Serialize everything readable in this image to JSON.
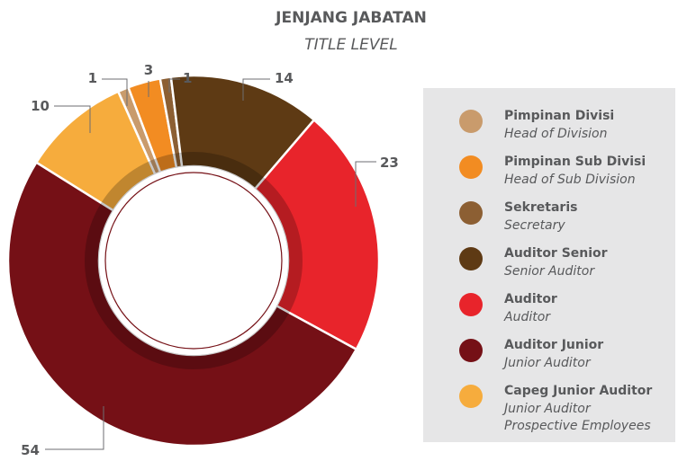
{
  "chart_data": {
    "type": "donut",
    "title": "JENJANG JABATAN",
    "subtitle": "TITLE LEVEL",
    "categories": [
      "Pimpinan Divisi",
      "Pimpinan Sub Divisi",
      "Sekretaris",
      "Auditor Senior",
      "Auditor",
      "Auditor Junior",
      "Capeg Junior Auditor"
    ],
    "category_translations": [
      [
        "Head of Division"
      ],
      [
        "Head of Sub Division"
      ],
      [
        "Secretary"
      ],
      [
        "Senior Auditor"
      ],
      [
        "Auditor"
      ],
      [
        "Junior Auditor"
      ],
      [
        "Junior Auditor",
        "Prospective Employees"
      ]
    ],
    "values": [
      1,
      3,
      1,
      14,
      23,
      54,
      10
    ],
    "colors": [
      "#c99b6c",
      "#f28c22",
      "#8c5f33",
      "#5e3a14",
      "#e8242b",
      "#751016",
      "#f6ac3d"
    ],
    "legend": "right"
  }
}
